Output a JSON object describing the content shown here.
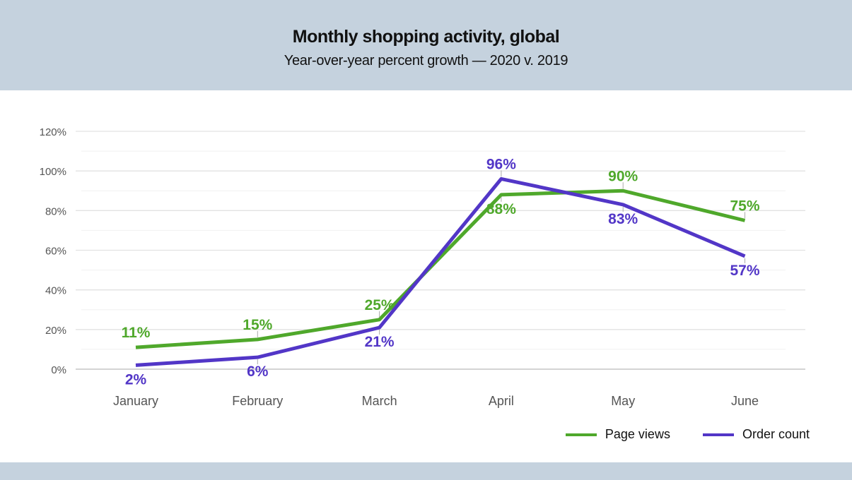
{
  "chart_data": {
    "type": "line",
    "title": "Monthly shopping activity, global",
    "subtitle": "Year-over-year percent growth — 2020 v. 2019",
    "categories": [
      "January",
      "February",
      "March",
      "April",
      "May",
      "June"
    ],
    "ylim": [
      0,
      120
    ],
    "yticks": [
      "0%",
      "20%",
      "40%",
      "60%",
      "80%",
      "100%",
      "120%"
    ],
    "grid": true,
    "legend_position": "bottom-right",
    "series": [
      {
        "name": "Page views",
        "color": "#4fa82b",
        "values": [
          11,
          15,
          25,
          88,
          90,
          75
        ],
        "labels": [
          "11%",
          "15%",
          "25%",
          "88%",
          "90%",
          "75%"
        ]
      },
      {
        "name": "Order count",
        "color": "#5236c7",
        "values": [
          2,
          6,
          21,
          96,
          83,
          57
        ],
        "labels": [
          "2%",
          "6%",
          "21%",
          "96%",
          "83%",
          "57%"
        ]
      }
    ]
  }
}
